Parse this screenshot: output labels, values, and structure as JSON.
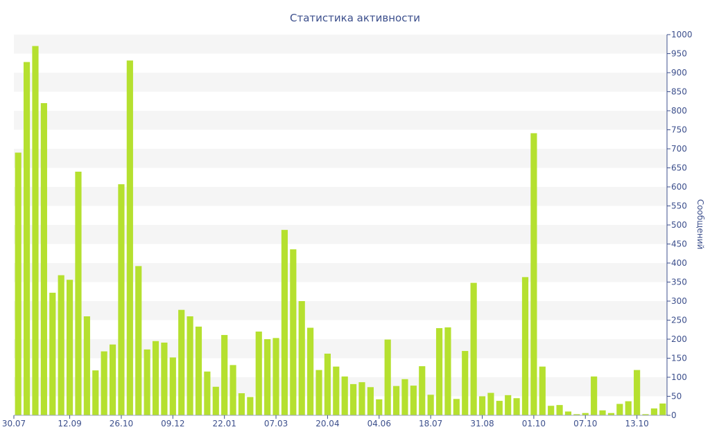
{
  "chart_data": {
    "type": "bar",
    "title": "Статистика активности",
    "xlabel": "",
    "ylabel": "Сообщений",
    "ylim": [
      0,
      1000
    ],
    "y_ticks": [
      0,
      50,
      100,
      150,
      200,
      250,
      300,
      350,
      400,
      450,
      500,
      550,
      600,
      650,
      700,
      750,
      800,
      850,
      900,
      950,
      1000
    ],
    "y_axis_position": "right",
    "x_tick_labels": [
      {
        "index": 0,
        "label": "30.07"
      },
      {
        "index": 6,
        "label": "12.09"
      },
      {
        "index": 12,
        "label": "26.10"
      },
      {
        "index": 18,
        "label": "09.12"
      },
      {
        "index": 24,
        "label": "22.01"
      },
      {
        "index": 30,
        "label": "07.03"
      },
      {
        "index": 36,
        "label": "20.04"
      },
      {
        "index": 42,
        "label": "04.06"
      },
      {
        "index": 48,
        "label": "18.07"
      },
      {
        "index": 54,
        "label": "31.08"
      },
      {
        "index": 60,
        "label": "01.10"
      },
      {
        "index": 66,
        "label": "07.10"
      },
      {
        "index": 72,
        "label": "13.10"
      }
    ],
    "values": [
      690,
      928,
      970,
      820,
      322,
      368,
      356,
      640,
      260,
      118,
      168,
      186,
      607,
      932,
      392,
      173,
      195,
      191,
      152,
      277,
      260,
      233,
      115,
      75,
      211,
      132,
      58,
      48,
      220,
      200,
      203,
      487,
      436,
      300,
      230,
      119,
      162,
      128,
      102,
      82,
      87,
      74,
      42,
      199,
      77,
      95,
      78,
      129,
      54,
      229,
      231,
      43,
      169,
      348,
      50,
      59,
      38,
      53,
      45,
      363,
      741,
      128,
      25,
      27,
      10,
      3,
      6,
      102,
      13,
      6,
      30,
      37,
      119,
      3,
      18,
      31
    ],
    "bar_color": "#b5e02f",
    "grid_band_color": "#f5f5f5",
    "axis_color": "#3c4f8c",
    "grid": true
  }
}
